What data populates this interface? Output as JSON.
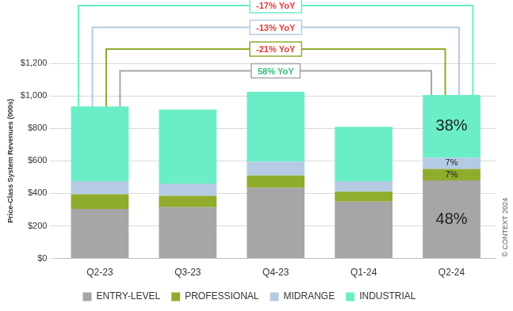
{
  "chart_data": {
    "type": "bar",
    "stacked": true,
    "grid": true,
    "legend": "bottom",
    "y_label": "Price-Class System Revenues (000s)",
    "categories": [
      "Q2-23",
      "Q3-23",
      "Q4-23",
      "Q1-24",
      "Q2-24"
    ],
    "series": [
      {
        "name": "ENTRY-LEVEL",
        "color": "#a6a6a6",
        "values": [
          305,
          315,
          435,
          350,
          480
        ]
      },
      {
        "name": "PROFESSIONAL",
        "color": "#8fac2c",
        "values": [
          90,
          70,
          75,
          60,
          70
        ]
      },
      {
        "name": "MIDRANGE",
        "color": "#b4cbe3",
        "values": [
          80,
          75,
          85,
          65,
          70
        ]
      },
      {
        "name": "INDUSTRIAL",
        "color": "#6beec7",
        "values": [
          460,
          455,
          430,
          335,
          385
        ]
      }
    ],
    "ylim": [
      0,
      1200
    ],
    "yticks": [
      {
        "value": 0,
        "label": "$0"
      },
      {
        "value": 200,
        "label": "$200"
      },
      {
        "value": 400,
        "label": "$400"
      },
      {
        "value": 600,
        "label": "$600"
      },
      {
        "value": 800,
        "label": "$800"
      },
      {
        "value": 1000,
        "label": "$1,000"
      },
      {
        "value": 1200,
        "label": "$1,200"
      }
    ],
    "segment_labels": [
      {
        "series": "INDUSTRIAL",
        "category": "Q2-24",
        "value": 38,
        "label": "38%"
      },
      {
        "series": "MIDRANGE",
        "category": "Q2-24",
        "value": 7,
        "label": "7%"
      },
      {
        "series": "PROFESSIONAL",
        "category": "Q2-24",
        "value": 7,
        "label": "7%"
      },
      {
        "series": "ENTRY-LEVEL",
        "category": "Q2-24",
        "value": 48,
        "label": "48%"
      }
    ],
    "yoy_brackets": [
      {
        "series": "INDUSTRIAL",
        "from": "Q2-23",
        "to": "Q2-24",
        "value": -17,
        "label": "-17% YoY"
      },
      {
        "series": "MIDRANGE",
        "from": "Q2-23",
        "to": "Q2-24",
        "value": -13,
        "label": "-13% YoY"
      },
      {
        "series": "PROFESSIONAL",
        "from": "Q2-23",
        "to": "Q2-24",
        "value": -21,
        "label": "-21% YoY"
      },
      {
        "series": "ENTRY-LEVEL",
        "from": "Q2-23",
        "to": "Q2-24",
        "value": 58,
        "label": "58% YoY"
      }
    ],
    "credit": "© CONTEXT 2024"
  }
}
